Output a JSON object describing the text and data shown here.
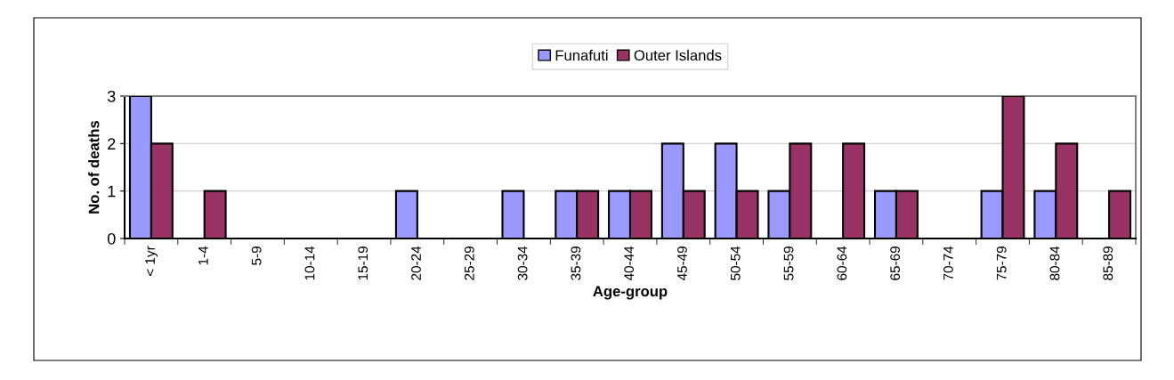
{
  "chart_data": {
    "type": "bar",
    "xlabel": "Age-group",
    "ylabel": "No. of deaths",
    "categories": [
      "< 1yr",
      "1-4",
      "5-9",
      "10-14",
      "15-19",
      "20-24",
      "25-29",
      "30-34",
      "35-39",
      "40-44",
      "45-49",
      "50-54",
      "55-59",
      "60-64",
      "65-69",
      "70-74",
      "75-79",
      "80-84",
      "85-89"
    ],
    "series": [
      {
        "name": "Funafuti",
        "color": "#9999ff",
        "values": [
          3,
          0,
          0,
          0,
          0,
          1,
          0,
          1,
          1,
          1,
          2,
          2,
          1,
          0,
          1,
          0,
          1,
          1,
          0
        ]
      },
      {
        "name": "Outer Islands",
        "color": "#993366",
        "values": [
          2,
          1,
          0,
          0,
          0,
          0,
          0,
          0,
          1,
          1,
          1,
          1,
          2,
          2,
          1,
          0,
          3,
          2,
          1
        ]
      }
    ],
    "ylim": [
      0,
      3
    ],
    "yticks": [
      0,
      1,
      2,
      3
    ],
    "grid": "y",
    "legend": "top"
  }
}
